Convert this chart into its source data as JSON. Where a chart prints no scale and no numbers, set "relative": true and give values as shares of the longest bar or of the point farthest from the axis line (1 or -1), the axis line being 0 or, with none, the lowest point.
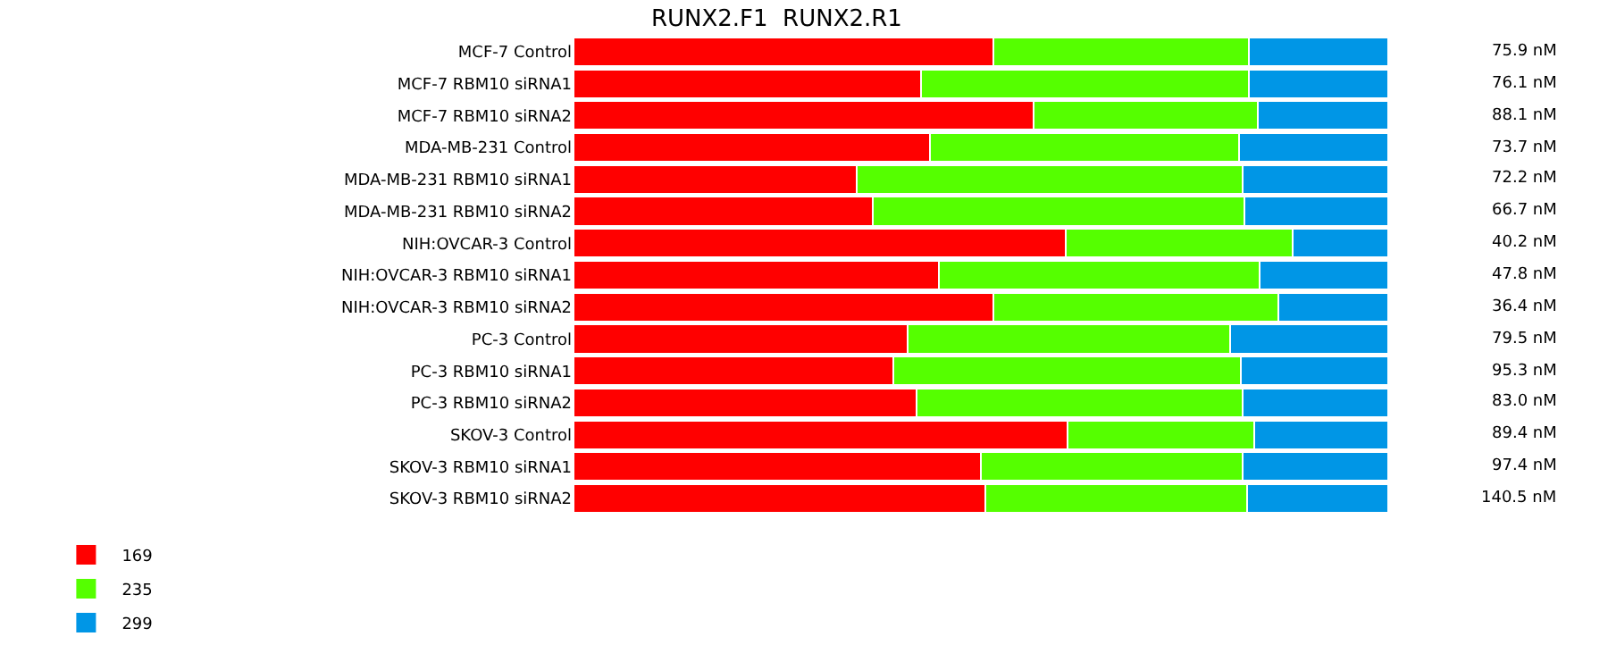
{
  "chart_data": {
    "type": "bar",
    "orientation": "horizontal",
    "stacked": true,
    "relative": true,
    "title": "RUNX2.F1  RUNX2.R1",
    "legend": "bottom left",
    "categories": [
      "MCF-7 Control",
      "MCF-7 RBM10 siRNA1",
      "MCF-7 RBM10 siRNA2",
      "MDA-MB-231 Control",
      "MDA-MB-231 RBM10 siRNA1",
      "MDA-MB-231 RBM10 siRNA2",
      "NIH:OVCAR-3 Control",
      "NIH:OVCAR-3 RBM10 siRNA1",
      "NIH:OVCAR-3 RBM10 siRNA2",
      "PC-3 Control",
      "PC-3 RBM10 siRNA1",
      "PC-3 RBM10 siRNA2",
      "SKOV-3 Control",
      "SKOV-3 RBM10 siRNA1",
      "SKOV-3 RBM10 siRNA2"
    ],
    "series": [
      {
        "name": "169",
        "color": "#ff0000",
        "values": [
          0.515,
          0.427,
          0.565,
          0.438,
          0.348,
          0.367,
          0.604,
          0.448,
          0.515,
          0.41,
          0.392,
          0.421,
          0.606,
          0.5,
          0.506
        ]
      },
      {
        "name": "235",
        "color": "#55ff00",
        "values": [
          0.314,
          0.402,
          0.275,
          0.379,
          0.473,
          0.456,
          0.279,
          0.394,
          0.35,
          0.396,
          0.427,
          0.4,
          0.229,
          0.321,
          0.321
        ]
      },
      {
        "name": "299",
        "color": "#0096e6",
        "values": [
          0.171,
          0.171,
          0.16,
          0.183,
          0.179,
          0.177,
          0.117,
          0.158,
          0.135,
          0.194,
          0.181,
          0.179,
          0.165,
          0.179,
          0.173
        ]
      }
    ],
    "annotations": [
      "75.9 nM",
      "76.1 nM",
      "88.1 nM",
      "73.7 nM",
      "72.2 nM",
      "66.7 nM",
      "40.2 nM",
      "47.8 nM",
      "36.4 nM",
      "79.5 nM",
      "95.3 nM",
      "83.0 nM",
      "89.4 nM",
      "97.4 nM",
      "140.5 nM"
    ]
  }
}
